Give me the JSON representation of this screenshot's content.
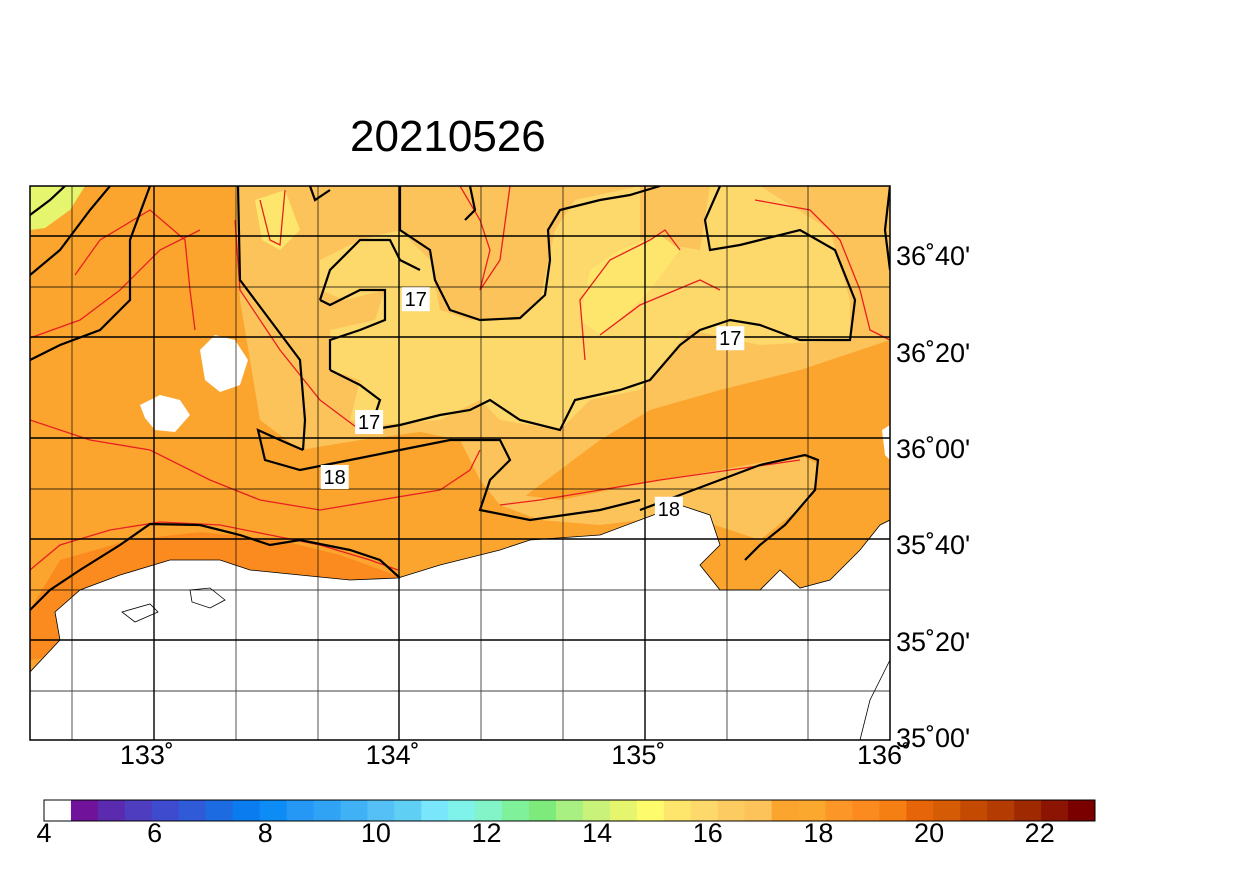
{
  "title": "20210526",
  "lat_ticks": [
    {
      "label": "36˚40'",
      "value": 36.6667
    },
    {
      "label": "36˚20'",
      "value": 36.3333
    },
    {
      "label": "36˚00'",
      "value": 36.0
    },
    {
      "label": "35˚40'",
      "value": 35.6667
    },
    {
      "label": "35˚20'",
      "value": 35.3333
    },
    {
      "label": "35˚00'",
      "value": 35.0
    }
  ],
  "lon_ticks": [
    {
      "label": "133˚",
      "value": 133
    },
    {
      "label": "134˚",
      "value": 134
    },
    {
      "label": "135˚",
      "value": 135
    },
    {
      "label": "136˚",
      "value": 136
    }
  ],
  "extent": {
    "lon_min": 132.5,
    "lon_max": 136.0,
    "lat_min": 35.0,
    "lat_max": 36.9167
  },
  "contour_labels": [
    {
      "text": "17",
      "lon": 134.07,
      "lat": 36.525
    },
    {
      "text": "17",
      "lon": 135.35,
      "lat": 36.39
    },
    {
      "text": "17",
      "lon": 133.88,
      "lat": 36.1
    },
    {
      "text": "18",
      "lon": 133.74,
      "lat": 35.91
    },
    {
      "text": "18",
      "lon": 135.1,
      "lat": 35.8
    }
  ],
  "colorbar": {
    "labels": [
      {
        "text": "4",
        "value": 4
      },
      {
        "text": "6",
        "value": 6
      },
      {
        "text": "8",
        "value": 8
      },
      {
        "text": "10",
        "value": 10
      },
      {
        "text": "12",
        "value": 12
      },
      {
        "text": "14",
        "value": 14
      },
      {
        "text": "16",
        "value": 16
      },
      {
        "text": "18",
        "value": 18
      },
      {
        "text": "20",
        "value": 20
      },
      {
        "text": "22",
        "value": 22
      }
    ],
    "min": 4,
    "max": 22.5,
    "step": 0.5,
    "colors": [
      "#ffffff",
      "#70139a",
      "#5a2aaf",
      "#4e3dbf",
      "#3f4bce",
      "#2f5ad8",
      "#1d6be0",
      "#0a7cf0",
      "#0d8cf5",
      "#2598f6",
      "#30a3f5",
      "#40b1f5",
      "#54c0f5",
      "#5fd0f4",
      "#7ae6fb",
      "#7ff2ea",
      "#82f4c7",
      "#7ff19a",
      "#7eea7c",
      "#a9f082",
      "#c8f27a",
      "#e5f56e",
      "#fefc6d",
      "#fde66b",
      "#fdd86b",
      "#fccb61",
      "#fcc35a",
      "#fba52f",
      "#fba82e",
      "#fb9627",
      "#fc8b1f",
      "#f57f12",
      "#e66508",
      "#d55b05",
      "#c44a01",
      "#b43c02",
      "#9f2a02",
      "#8b1502",
      "#7a0000"
    ]
  }
}
